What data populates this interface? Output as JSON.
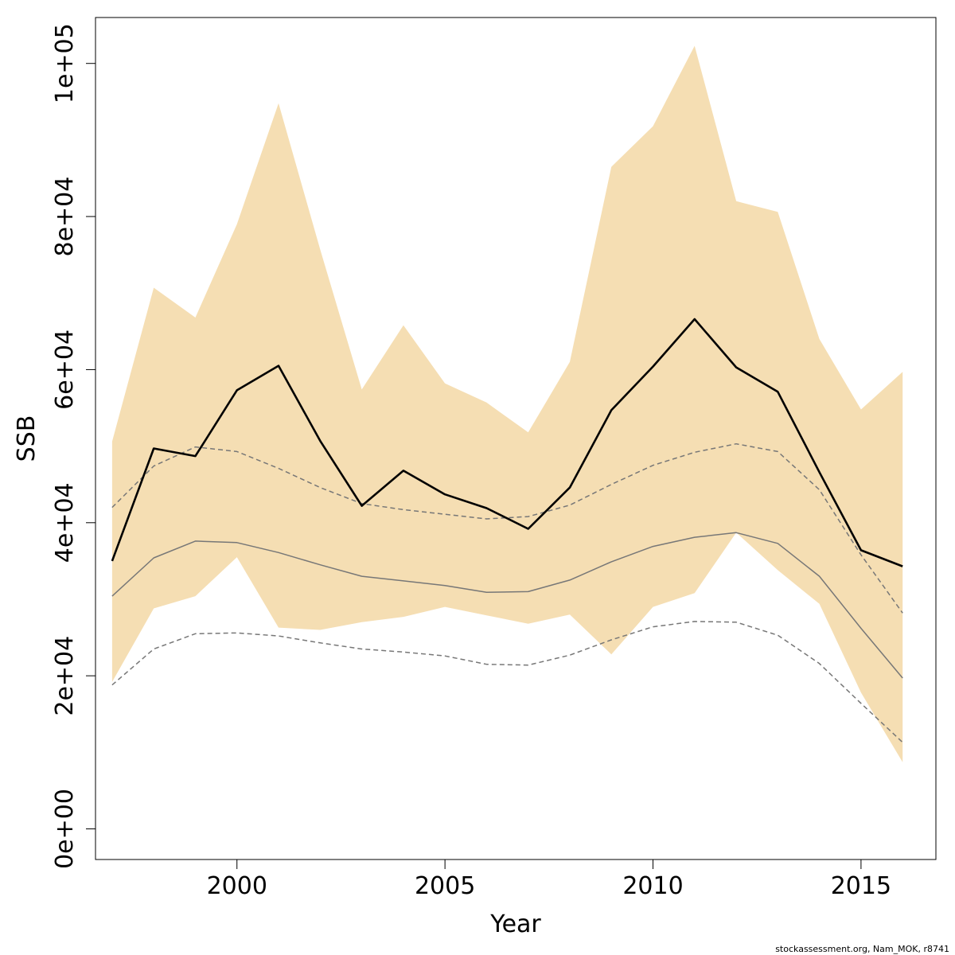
{
  "chart_data": {
    "type": "line",
    "xlabel": "Year",
    "ylabel": "SSB",
    "xlim": [
      1996.6,
      2016.8
    ],
    "ylim": [
      -4000,
      106000
    ],
    "x_ticks": [
      2000,
      2005,
      2010,
      2015
    ],
    "x_tick_labels": [
      "2000",
      "2005",
      "2010",
      "2015"
    ],
    "y_ticks": [
      0,
      20000,
      40000,
      60000,
      80000,
      100000
    ],
    "y_tick_labels": [
      "0e+00",
      "2e+04",
      "4e+04",
      "6e+04",
      "8e+04",
      "1e+05"
    ],
    "grid": false,
    "legend": "none",
    "x": [
      1997,
      1998,
      1999,
      2000,
      2001,
      2002,
      2003,
      2004,
      2005,
      2006,
      2007,
      2008,
      2009,
      2010,
      2011,
      2012,
      2013,
      2014,
      2015,
      2016
    ],
    "band": {
      "color": "#f5deb3",
      "low": [
        19200,
        28800,
        30400,
        35500,
        26300,
        26000,
        27000,
        27700,
        29000,
        27900,
        26800,
        28000,
        22800,
        29000,
        30800,
        38700,
        33800,
        29400,
        17800,
        8700
      ],
      "high": [
        50600,
        70700,
        66800,
        79000,
        94800,
        75700,
        57400,
        65800,
        58200,
        55700,
        51800,
        61000,
        86500,
        91800,
        102300,
        82000,
        80600,
        64000,
        54800,
        59700
      ]
    },
    "series": [
      {
        "style": "solid-thick",
        "color": "#000000",
        "values": [
          35000,
          49700,
          48700,
          57300,
          60500,
          50700,
          42200,
          46800,
          43700,
          41900,
          39200,
          44600,
          54700,
          60400,
          66600,
          60300,
          57100,
          46600,
          36400,
          34300
        ]
      },
      {
        "style": "solid-thin",
        "color": "#777777",
        "values": [
          30400,
          35400,
          37600,
          37400,
          36100,
          34500,
          33000,
          32400,
          31800,
          30900,
          31000,
          32500,
          34900,
          36900,
          38100,
          38700,
          37300,
          33000,
          26200,
          19700
        ]
      },
      {
        "style": "dashed-upper",
        "color": "#777777",
        "values": [
          42000,
          47400,
          49900,
          49300,
          47100,
          44600,
          42500,
          41700,
          41100,
          40500,
          40800,
          42300,
          45000,
          47500,
          49200,
          50300,
          49300,
          44300,
          35800,
          28200
        ]
      },
      {
        "style": "dashed-lower",
        "color": "#777777",
        "values": [
          18800,
          23500,
          25500,
          25600,
          25200,
          24300,
          23500,
          23100,
          22600,
          21500,
          21400,
          22700,
          24700,
          26400,
          27100,
          27000,
          25300,
          21600,
          16400,
          11300
        ]
      }
    ]
  },
  "credit": "stockassessment.org, Nam_MOK, r8741"
}
